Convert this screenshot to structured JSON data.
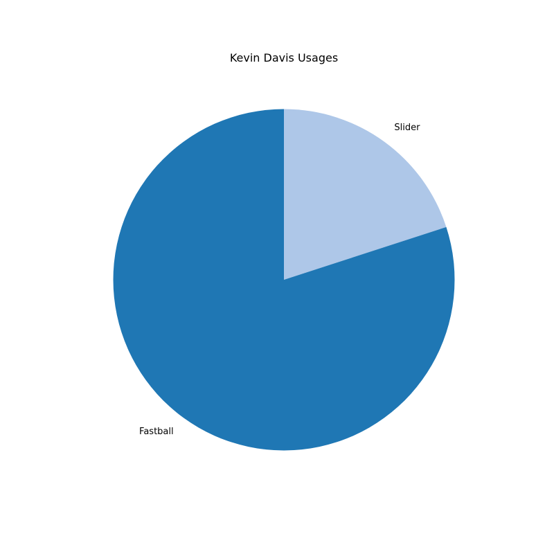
{
  "chart_data": {
    "type": "pie",
    "title": "Kevin Davis Usages",
    "labels": [
      "Slider",
      "Fastball"
    ],
    "values": [
      20,
      80
    ],
    "colors": [
      "#aec7e8",
      "#1f77b4"
    ],
    "start_angle_deg": 90,
    "direction": "clockwise",
    "legend": "none",
    "labels_outside": true
  }
}
